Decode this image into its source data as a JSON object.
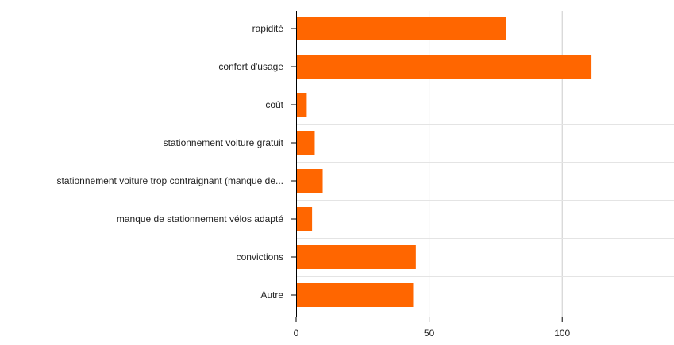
{
  "chart_data": {
    "type": "bar",
    "orientation": "horizontal",
    "categories": [
      "rapidité",
      "confort d'usage",
      "coût",
      "stationnement voiture gratuit",
      "stationnement voiture trop contraignant (manque de...",
      "manque de stationnement vélos adapté",
      "convictions",
      "Autre"
    ],
    "values": [
      79,
      111,
      4,
      7,
      10,
      6,
      45,
      44
    ],
    "xlim": [
      0,
      142
    ],
    "xticks": [
      0,
      50,
      100
    ],
    "grid": true,
    "title": "",
    "xlabel": "",
    "ylabel": "",
    "colors": {
      "bar": "#ff6600",
      "grid": "#cccccc",
      "axis": "#000000"
    }
  }
}
